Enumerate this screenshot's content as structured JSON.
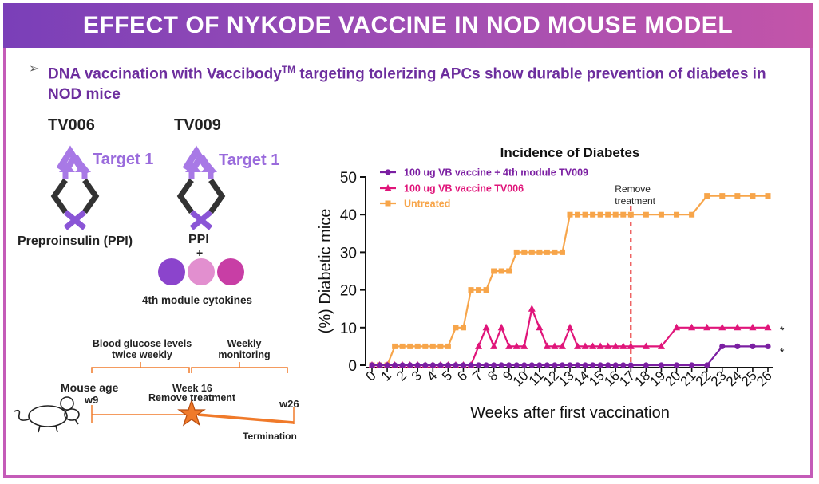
{
  "header": {
    "title": "EFFECT OF NYKODE VACCINE IN NOD MOUSE MODEL"
  },
  "bullet": {
    "marker": "➢",
    "text_before_tm": "DNA vaccination with Vaccibody",
    "tm": "TM",
    "text_after_tm": " targeting tolerizing APCs show durable prevention of diabetes in NOD mice"
  },
  "left_panel": {
    "tv006": {
      "name": "TV006",
      "target": "Target 1",
      "antigen": "Preproinsulin (PPI)"
    },
    "tv009": {
      "name": "TV009",
      "target": "Target 1",
      "antigen": "PPI",
      "plus": "+",
      "module_label": "4th module cytokines"
    },
    "module_colors": [
      "#8b44cc",
      "#e28fcf",
      "#c83ea5"
    ]
  },
  "timeline": {
    "blood_glucose": "Blood glucose levels twice weekly",
    "weekly": "Weekly monitoring",
    "mouse_age": "Mouse age",
    "start": "w9",
    "week16": "Week 16",
    "remove": "Remove treatment",
    "end": "w26",
    "termination": "Termination",
    "star_color": "#f07a2a"
  },
  "chart_data": {
    "type": "line",
    "title": "Incidence of Diabetes",
    "xlabel": "Weeks after first vaccination",
    "ylabel": "(%) Diabetic mice",
    "ylim": [
      0,
      50
    ],
    "yticks": [
      0,
      10,
      20,
      30,
      40,
      50
    ],
    "xticks": [
      "0",
      "1",
      "2",
      "3",
      "4",
      "5",
      "6",
      "7",
      "8",
      "9",
      "10",
      "11",
      "12",
      "13",
      "14",
      "15",
      "16",
      "17",
      "18",
      "19",
      "20",
      "21",
      "22",
      "23",
      "24",
      "25",
      "26"
    ],
    "legend_position": "top-left",
    "annotation": {
      "text_line1": "Remove",
      "text_line2": "treatment",
      "x": 17
    },
    "significance": [
      "*",
      "*"
    ],
    "series": [
      {
        "name": "100 ug VB vaccine + 4th module TV009",
        "color": "#7b1fa2",
        "marker": "circle",
        "points": [
          [
            0,
            0
          ],
          [
            0.5,
            0
          ],
          [
            1,
            0
          ],
          [
            1.5,
            0
          ],
          [
            2,
            0
          ],
          [
            2.5,
            0
          ],
          [
            3,
            0
          ],
          [
            3.5,
            0
          ],
          [
            4,
            0
          ],
          [
            4.5,
            0
          ],
          [
            5,
            0
          ],
          [
            5.5,
            0
          ],
          [
            6,
            0
          ],
          [
            6.5,
            0
          ],
          [
            7,
            0
          ],
          [
            7.5,
            0
          ],
          [
            8,
            0
          ],
          [
            8.5,
            0
          ],
          [
            9,
            0
          ],
          [
            9.5,
            0
          ],
          [
            10,
            0
          ],
          [
            10.5,
            0
          ],
          [
            11,
            0
          ],
          [
            11.5,
            0
          ],
          [
            12,
            0
          ],
          [
            12.5,
            0
          ],
          [
            13,
            0
          ],
          [
            13.5,
            0
          ],
          [
            14,
            0
          ],
          [
            14.5,
            0
          ],
          [
            15,
            0
          ],
          [
            15.5,
            0
          ],
          [
            16,
            0
          ],
          [
            16.5,
            0
          ],
          [
            17,
            0
          ],
          [
            18,
            0
          ],
          [
            19,
            0
          ],
          [
            20,
            0
          ],
          [
            21,
            0
          ],
          [
            22,
            0
          ],
          [
            23,
            5
          ],
          [
            24,
            5
          ],
          [
            25,
            5
          ],
          [
            26,
            5
          ]
        ]
      },
      {
        "name": "100 ug VB vaccine TV006",
        "color": "#e0157a",
        "marker": "triangle",
        "points": [
          [
            0,
            0
          ],
          [
            0.5,
            0
          ],
          [
            1,
            0
          ],
          [
            1.5,
            0
          ],
          [
            2,
            0
          ],
          [
            2.5,
            0
          ],
          [
            3,
            0
          ],
          [
            3.5,
            0
          ],
          [
            4,
            0
          ],
          [
            4.5,
            0
          ],
          [
            5,
            0
          ],
          [
            5.5,
            0
          ],
          [
            6,
            0
          ],
          [
            6.5,
            0
          ],
          [
            7,
            5
          ],
          [
            7.5,
            10
          ],
          [
            8,
            5
          ],
          [
            8.5,
            10
          ],
          [
            9,
            5
          ],
          [
            9.5,
            5
          ],
          [
            10,
            5
          ],
          [
            10.5,
            15
          ],
          [
            11,
            10
          ],
          [
            11.5,
            5
          ],
          [
            12,
            5
          ],
          [
            12.5,
            5
          ],
          [
            13,
            10
          ],
          [
            13.5,
            5
          ],
          [
            14,
            5
          ],
          [
            14.5,
            5
          ],
          [
            15,
            5
          ],
          [
            15.5,
            5
          ],
          [
            16,
            5
          ],
          [
            16.5,
            5
          ],
          [
            17,
            5
          ],
          [
            18,
            5
          ],
          [
            19,
            5
          ],
          [
            20,
            10
          ],
          [
            21,
            10
          ],
          [
            22,
            10
          ],
          [
            23,
            10
          ],
          [
            24,
            10
          ],
          [
            25,
            10
          ],
          [
            26,
            10
          ]
        ]
      },
      {
        "name": "Untreated",
        "color": "#f7a54a",
        "marker": "square",
        "points": [
          [
            0,
            0
          ],
          [
            0.5,
            0
          ],
          [
            1,
            0
          ],
          [
            1.5,
            5
          ],
          [
            2,
            5
          ],
          [
            2.5,
            5
          ],
          [
            3,
            5
          ],
          [
            3.5,
            5
          ],
          [
            4,
            5
          ],
          [
            4.5,
            5
          ],
          [
            5,
            5
          ],
          [
            5.5,
            10
          ],
          [
            6,
            10
          ],
          [
            6.5,
            20
          ],
          [
            7,
            20
          ],
          [
            7.5,
            20
          ],
          [
            8,
            25
          ],
          [
            8.5,
            25
          ],
          [
            9,
            25
          ],
          [
            9.5,
            30
          ],
          [
            10,
            30
          ],
          [
            10.5,
            30
          ],
          [
            11,
            30
          ],
          [
            11.5,
            30
          ],
          [
            12,
            30
          ],
          [
            12.5,
            30
          ],
          [
            13,
            40
          ],
          [
            13.5,
            40
          ],
          [
            14,
            40
          ],
          [
            14.5,
            40
          ],
          [
            15,
            40
          ],
          [
            15.5,
            40
          ],
          [
            16,
            40
          ],
          [
            16.5,
            40
          ],
          [
            17,
            40
          ],
          [
            18,
            40
          ],
          [
            19,
            40
          ],
          [
            20,
            40
          ],
          [
            21,
            40
          ],
          [
            22,
            45
          ],
          [
            23,
            45
          ],
          [
            24,
            45
          ],
          [
            25,
            45
          ],
          [
            26,
            45
          ]
        ]
      }
    ]
  }
}
